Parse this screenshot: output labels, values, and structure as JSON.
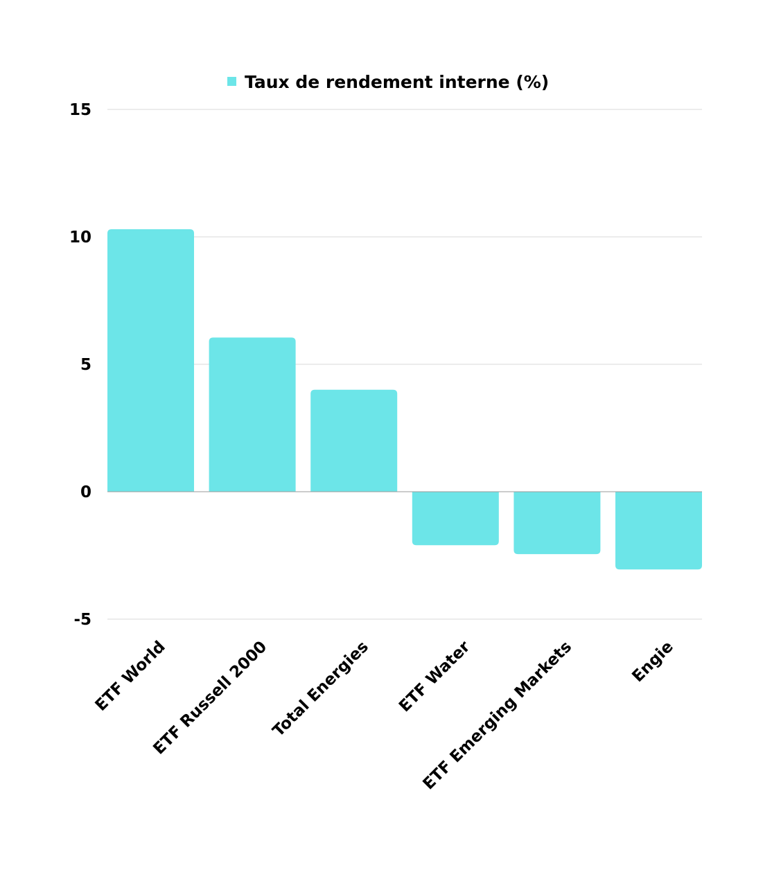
{
  "chart_data": {
    "type": "bar",
    "categories": [
      "ETF World",
      "ETF Russell 2000",
      "Total Energies",
      "ETF Water",
      "ETF Emerging Markets",
      "Engie"
    ],
    "series": [
      {
        "name": "Taux de rendement interne (%)",
        "values": [
          10.3,
          6.05,
          4.0,
          -2.1,
          -2.45,
          -3.05
        ],
        "color": "#6ce5e8"
      }
    ],
    "ylim": [
      -5,
      15
    ],
    "yticks": [
      15,
      10,
      5,
      0,
      -5
    ],
    "grid": true,
    "legend": "top-center",
    "title": "",
    "xlabel": "",
    "ylabel": ""
  }
}
